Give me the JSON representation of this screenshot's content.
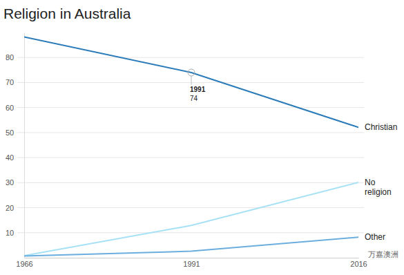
{
  "chart_data": {
    "type": "line",
    "title": "Religion in Australia",
    "x": [
      1966,
      1991,
      2016
    ],
    "xlim": [
      1966,
      2016
    ],
    "xticks": [
      1966,
      1991,
      2016
    ],
    "ylim": [
      0,
      90
    ],
    "yticks": [
      10,
      20,
      30,
      40,
      50,
      60,
      70,
      80
    ],
    "grid": true,
    "series": [
      {
        "name": "Christian",
        "color": "#2b7bb9",
        "values": [
          88.2,
          74,
          52.1
        ]
      },
      {
        "name": "No religion",
        "color": "#a6e1f5",
        "values": [
          0.8,
          12.9,
          30.1
        ]
      },
      {
        "name": "Other",
        "color": "#6badde",
        "values": [
          0.7,
          2.6,
          8.2
        ]
      }
    ],
    "annotations": [
      {
        "x": 1991,
        "y": 74
      }
    ],
    "watermark": "万嘉澳洲"
  }
}
